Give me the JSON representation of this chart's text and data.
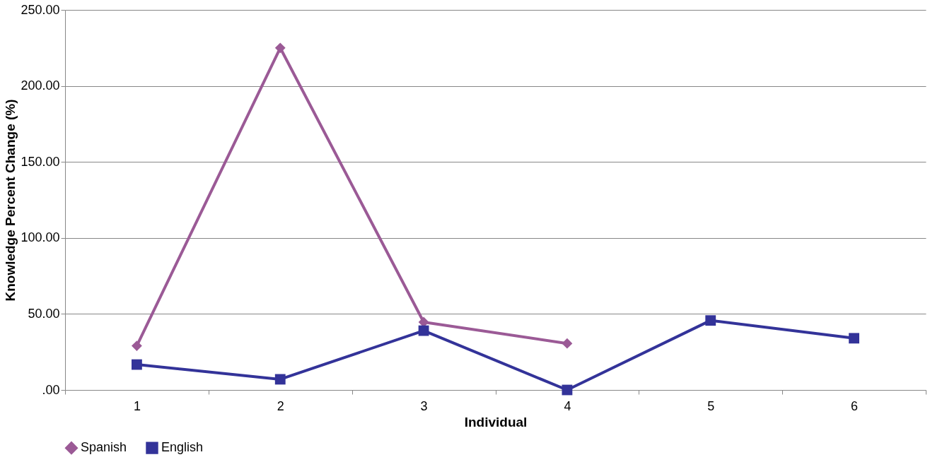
{
  "chart_data": {
    "type": "line",
    "xlabel": "Individual",
    "ylabel": "Knowledge Percent Change (%)",
    "categories": [
      "1",
      "2",
      "3",
      "4",
      "5",
      "6"
    ],
    "series": [
      {
        "name": "Spanish",
        "color": "#9b5a96",
        "marker": "diamond",
        "values": [
          29,
          225,
          44.6,
          30.6,
          null,
          null
        ]
      },
      {
        "name": "English",
        "color": "#333399",
        "marker": "square",
        "values": [
          16.7,
          7,
          39,
          0,
          45.7,
          34
        ]
      }
    ],
    "ylim": [
      0,
      250
    ],
    "yticks": [
      {
        "value": 0,
        "label": ".00"
      },
      {
        "value": 50,
        "label": "50.00"
      },
      {
        "value": 100,
        "label": "100.00"
      },
      {
        "value": 150,
        "label": "150.00"
      },
      {
        "value": 200,
        "label": "200.00"
      },
      {
        "value": 250,
        "label": "250.00"
      }
    ],
    "grid": "y",
    "legend": "bottom",
    "line_style": "solid"
  }
}
